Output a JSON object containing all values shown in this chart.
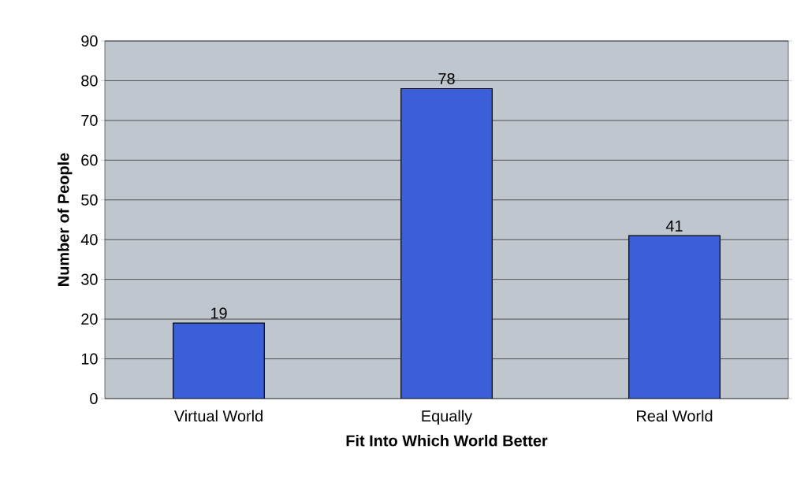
{
  "chart_data": {
    "type": "bar",
    "xlabel": "Fit Into Which World Better",
    "ylabel": "Number of People",
    "categories": [
      "Virtual World",
      "Equally",
      "Real World"
    ],
    "values": [
      19,
      78,
      41
    ],
    "color": "#3a5fd8",
    "ylim": [
      0,
      90
    ],
    "yticks": [
      0,
      10,
      20,
      30,
      40,
      50,
      60,
      70,
      80,
      90
    ],
    "grid": "y",
    "data_labels": true
  }
}
